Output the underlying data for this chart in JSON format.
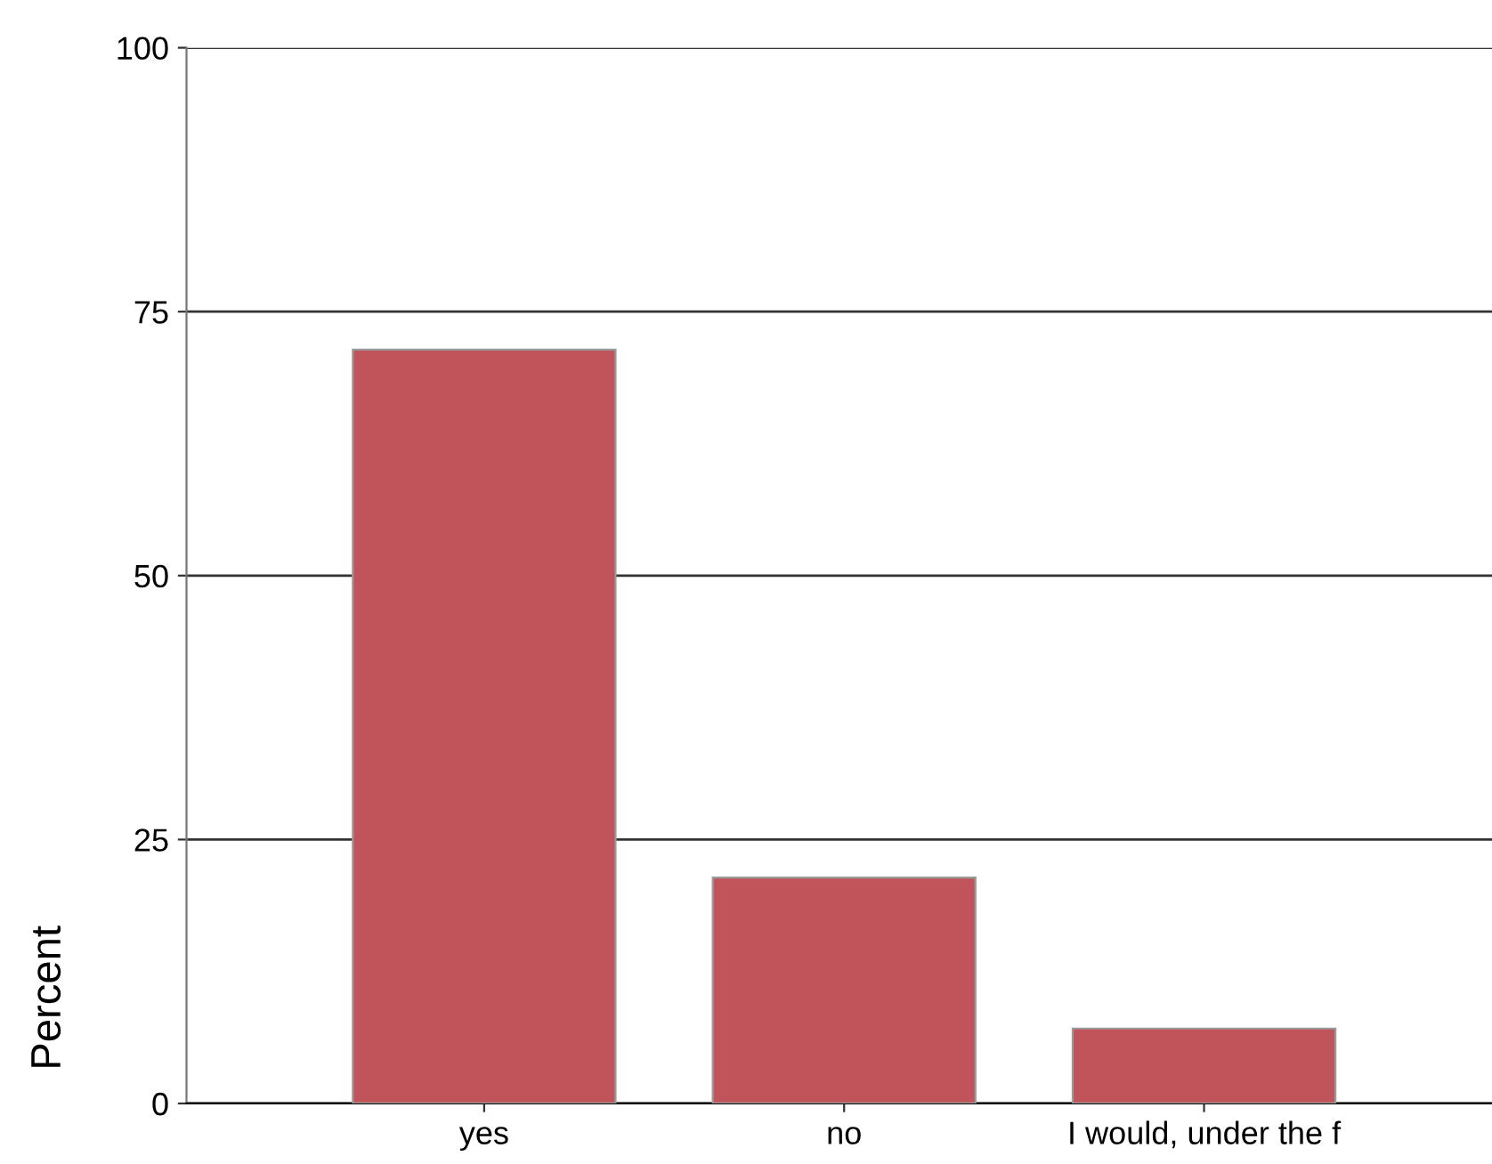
{
  "chart_data": {
    "type": "bar",
    "ylabel": "Percent",
    "categories": [
      "yes",
      "no",
      "I would, under the f"
    ],
    "values": [
      71.4,
      21.4,
      7.1
    ],
    "color": "#c0545a",
    "ylim": [
      0,
      100
    ],
    "yticks": [
      0,
      25,
      50,
      75,
      100
    ],
    "grid": "y"
  }
}
